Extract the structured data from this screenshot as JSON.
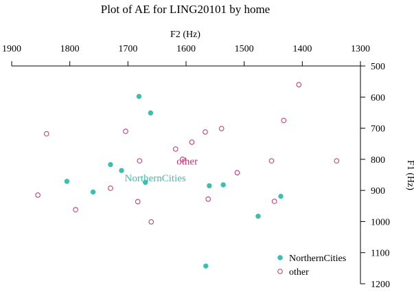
{
  "chart_data": {
    "type": "scatter",
    "title": "Plot of AE for LING20101 by home",
    "xlabel": "F2 (Hz)",
    "ylabel": "F1 (Hz)",
    "x_axis_position": "top",
    "y_axis_position": "right",
    "x_reversed": true,
    "y_reversed": true,
    "xlim": [
      1900,
      1300
    ],
    "ylim": [
      500,
      1200
    ],
    "x_ticks": [
      1900,
      1800,
      1700,
      1600,
      1500,
      1400,
      1300
    ],
    "y_ticks": [
      500,
      600,
      700,
      800,
      900,
      1000,
      1100,
      1200
    ],
    "grid": false,
    "legend_position": "bottom-right",
    "series": [
      {
        "name": "NorthernCities",
        "color": "#3dbfb0",
        "marker": "filled-circle",
        "points": [
          {
            "x": 1681,
            "y": 598
          },
          {
            "x": 1661,
            "y": 651
          },
          {
            "x": 1730,
            "y": 817
          },
          {
            "x": 1711,
            "y": 836
          },
          {
            "x": 1805,
            "y": 871
          },
          {
            "x": 1760,
            "y": 905
          },
          {
            "x": 1670,
            "y": 874
          },
          {
            "x": 1560,
            "y": 885
          },
          {
            "x": 1536,
            "y": 882
          },
          {
            "x": 1437,
            "y": 919
          },
          {
            "x": 1476,
            "y": 983
          },
          {
            "x": 1566,
            "y": 1143
          }
        ],
        "centroid": {
          "x": 1653,
          "y": 860
        }
      },
      {
        "name": "other",
        "color": "#c0306a",
        "marker": "open-circle",
        "points": [
          {
            "x": 1406,
            "y": 560
          },
          {
            "x": 1432,
            "y": 675
          },
          {
            "x": 1840,
            "y": 718
          },
          {
            "x": 1704,
            "y": 710
          },
          {
            "x": 1567,
            "y": 712
          },
          {
            "x": 1539,
            "y": 701
          },
          {
            "x": 1590,
            "y": 745
          },
          {
            "x": 1618,
            "y": 767
          },
          {
            "x": 1680,
            "y": 805
          },
          {
            "x": 1606,
            "y": 800
          },
          {
            "x": 1453,
            "y": 805
          },
          {
            "x": 1341,
            "y": 805
          },
          {
            "x": 1512,
            "y": 843
          },
          {
            "x": 1730,
            "y": 893
          },
          {
            "x": 1855,
            "y": 915
          },
          {
            "x": 1790,
            "y": 962
          },
          {
            "x": 1683,
            "y": 936
          },
          {
            "x": 1562,
            "y": 928
          },
          {
            "x": 1448,
            "y": 935
          },
          {
            "x": 1660,
            "y": 1001
          }
        ],
        "centroid": {
          "x": 1598,
          "y": 806
        }
      }
    ]
  }
}
